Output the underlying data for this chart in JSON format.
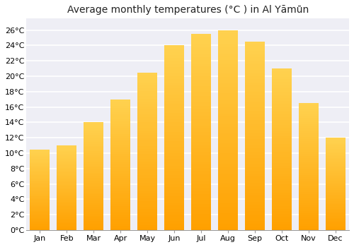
{
  "title": "Average monthly temperatures (°C ) in Al Yāmūn",
  "months": [
    "Jan",
    "Feb",
    "Mar",
    "Apr",
    "May",
    "Jun",
    "Jul",
    "Aug",
    "Sep",
    "Oct",
    "Nov",
    "Dec"
  ],
  "values": [
    10.5,
    11.0,
    14.0,
    17.0,
    20.5,
    24.0,
    25.5,
    26.0,
    24.5,
    21.0,
    16.5,
    12.0
  ],
  "ylim": [
    0,
    27.5
  ],
  "yticks": [
    0,
    2,
    4,
    6,
    8,
    10,
    12,
    14,
    16,
    18,
    20,
    22,
    24,
    26
  ],
  "ytick_labels": [
    "0°C",
    "2°C",
    "4°C",
    "6°C",
    "8°C",
    "10°C",
    "12°C",
    "14°C",
    "16°C",
    "18°C",
    "20°C",
    "22°C",
    "24°C",
    "26°C"
  ],
  "bar_color": "#FFC020",
  "bar_edge_left": "#FFD060",
  "bar_edge_right": "#FFA000",
  "background_color": "#ffffff",
  "plot_bg_color": "#eeeef5",
  "grid_color": "#ffffff",
  "title_fontsize": 10,
  "tick_fontsize": 8,
  "bar_width": 0.75
}
